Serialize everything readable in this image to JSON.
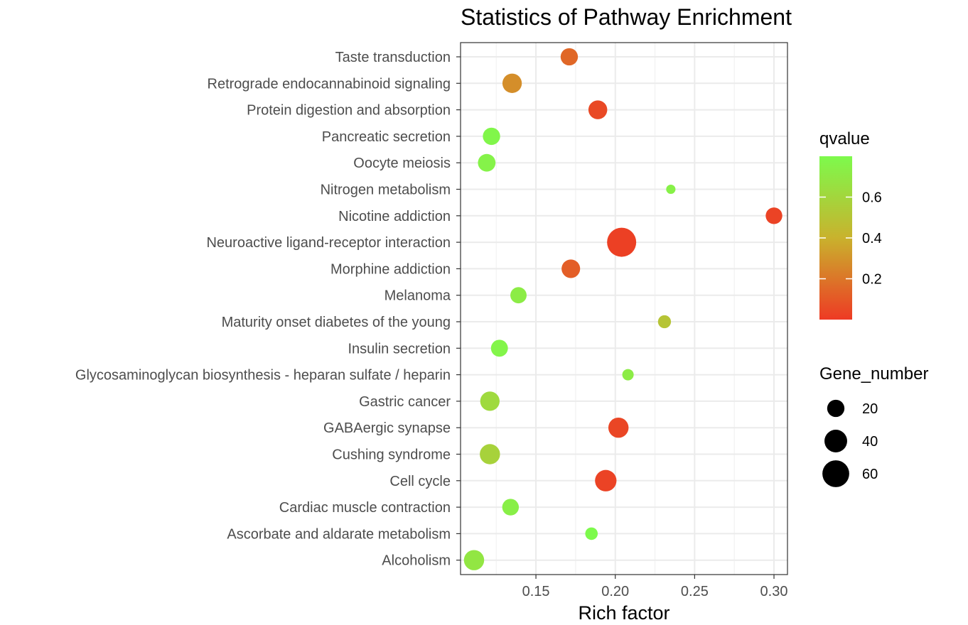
{
  "chart_data": {
    "type": "scatter",
    "title": "Statistics of Pathway Enrichment",
    "xlabel": "Rich factor",
    "ylabel": "",
    "xlim": [
      0.1025,
      0.3085
    ],
    "xticks": [
      0.15,
      0.2,
      0.25,
      0.3
    ],
    "xtick_labels": [
      "0.15",
      "0.20",
      "0.25",
      "0.30"
    ],
    "grid": true,
    "categories": [
      "Taste transduction",
      "Retrograde endocannabinoid signaling",
      "Protein digestion and absorption",
      "Pancreatic secretion",
      "Oocyte meiosis",
      "Nitrogen metabolism",
      "Nicotine addiction",
      "Neuroactive ligand-receptor interaction",
      "Morphine addiction",
      "Melanoma",
      "Maturity onset diabetes of the young",
      "Insulin secretion",
      "Glycosaminoglycan biosynthesis - heparan sulfate / heparin",
      "Gastric cancer",
      "GABAergic synapse",
      "Cushing syndrome",
      "Cell cycle",
      "Cardiac muscle contraction",
      "Ascorbate and aldarate metabolism",
      "Alcoholism"
    ],
    "points": [
      {
        "pathway": "Taste transduction",
        "rich_factor": 0.171,
        "qvalue": 0.15,
        "gene_number": 20
      },
      {
        "pathway": "Retrograde endocannabinoid signaling",
        "rich_factor": 0.135,
        "qvalue": 0.28,
        "gene_number": 27
      },
      {
        "pathway": "Protein digestion and absorption",
        "rich_factor": 0.189,
        "qvalue": 0.05,
        "gene_number": 25
      },
      {
        "pathway": "Pancreatic secretion",
        "rich_factor": 0.122,
        "qvalue": 0.78,
        "gene_number": 20
      },
      {
        "pathway": "Oocyte meiosis",
        "rich_factor": 0.119,
        "qvalue": 0.76,
        "gene_number": 21
      },
      {
        "pathway": "Nitrogen metabolism",
        "rich_factor": 0.235,
        "qvalue": 0.75,
        "gene_number": 3
      },
      {
        "pathway": "Nicotine addiction",
        "rich_factor": 0.3,
        "qvalue": 0.03,
        "gene_number": 18
      },
      {
        "pathway": "Neuroactive ligand-receptor interaction",
        "rich_factor": 0.204,
        "qvalue": 0.02,
        "gene_number": 73
      },
      {
        "pathway": "Morphine addiction",
        "rich_factor": 0.172,
        "qvalue": 0.12,
        "gene_number": 24
      },
      {
        "pathway": "Melanoma",
        "rich_factor": 0.139,
        "qvalue": 0.72,
        "gene_number": 17
      },
      {
        "pathway": "Maturity onset diabetes of the young",
        "rich_factor": 0.231,
        "qvalue": 0.5,
        "gene_number": 9
      },
      {
        "pathway": "Insulin secretion",
        "rich_factor": 0.127,
        "qvalue": 0.77,
        "gene_number": 19
      },
      {
        "pathway": "Glycosaminoglycan biosynthesis - heparan sulfate / heparin",
        "rich_factor": 0.208,
        "qvalue": 0.72,
        "gene_number": 6
      },
      {
        "pathway": "Gastric cancer",
        "rich_factor": 0.121,
        "qvalue": 0.62,
        "gene_number": 27
      },
      {
        "pathway": "GABAergic synapse",
        "rich_factor": 0.202,
        "qvalue": 0.04,
        "gene_number": 30
      },
      {
        "pathway": "Cushing syndrome",
        "rich_factor": 0.121,
        "qvalue": 0.58,
        "gene_number": 30
      },
      {
        "pathway": "Cell cycle",
        "rich_factor": 0.194,
        "qvalue": 0.03,
        "gene_number": 35
      },
      {
        "pathway": "Cardiac muscle contraction",
        "rich_factor": 0.134,
        "qvalue": 0.74,
        "gene_number": 18
      },
      {
        "pathway": "Ascorbate and aldarate metabolism",
        "rich_factor": 0.185,
        "qvalue": 0.8,
        "gene_number": 8
      },
      {
        "pathway": "Alcoholism",
        "rich_factor": 0.111,
        "qvalue": 0.69,
        "gene_number": 30
      }
    ],
    "color_legend": {
      "title": "qvalue",
      "range": [
        0.0,
        0.8
      ],
      "ticks": [
        0.2,
        0.4,
        0.6
      ],
      "tick_labels": [
        "0.2",
        "0.4",
        "0.6"
      ],
      "low_color": "#ee3a24",
      "mid_color": "#c9b22d",
      "high_color": "#7dfa4c",
      "placement": "right"
    },
    "size_legend": {
      "title": "Gene_number",
      "values": [
        20,
        40,
        60
      ],
      "labels": [
        "20",
        "40",
        "60"
      ],
      "placement": "right"
    }
  }
}
